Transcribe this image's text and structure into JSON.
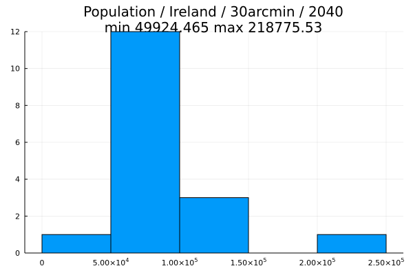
{
  "chart_data": {
    "type": "bar",
    "title": "Population / Ireland / 30arcmin / 2040",
    "subtitle": "min 49924.465  max 218775.53",
    "xlabel": "",
    "ylabel": "",
    "bins": [
      {
        "x0": 0,
        "x1": 50000,
        "value": 1
      },
      {
        "x0": 50000,
        "x1": 100000,
        "value": 12
      },
      {
        "x0": 100000,
        "x1": 150000,
        "value": 3
      },
      {
        "x0": 150000,
        "x1": 200000,
        "value": 0
      },
      {
        "x0": 200000,
        "x1": 250000,
        "value": 1
      }
    ],
    "xlim": [
      -12500,
      262500
    ],
    "ylim": [
      0,
      12
    ],
    "x_ticks": [
      {
        "value": 0,
        "label": "0"
      },
      {
        "value": 50000,
        "mant": "5.00×10",
        "exp": "4"
      },
      {
        "value": 100000,
        "mant": "1.00×10",
        "exp": "5"
      },
      {
        "value": 150000,
        "mant": "1.50×10",
        "exp": "5"
      },
      {
        "value": 200000,
        "mant": "2.00×10",
        "exp": "5"
      },
      {
        "value": 250000,
        "mant": "2.50×10",
        "exp": "5"
      }
    ],
    "y_ticks": [
      "0",
      "2",
      "4",
      "6",
      "8",
      "10",
      "12"
    ],
    "grid": true,
    "legend": "none",
    "bar_color": "#009AFA"
  }
}
